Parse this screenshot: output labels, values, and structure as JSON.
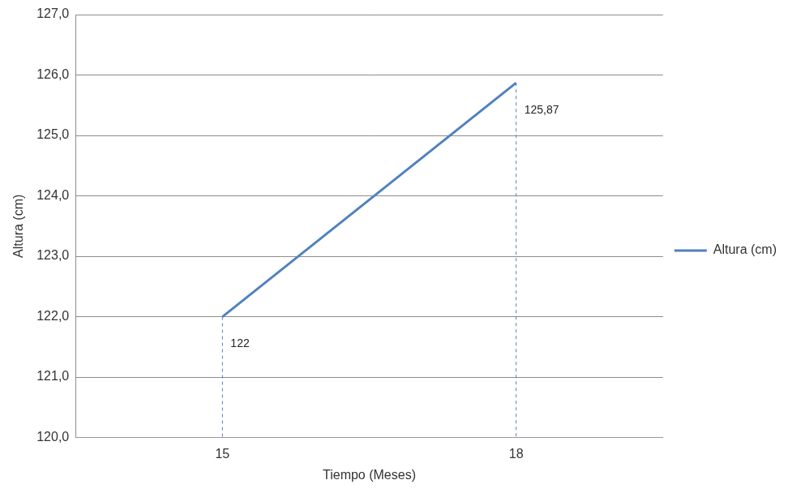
{
  "chart_data": {
    "type": "line",
    "x_label": "Tiempo (Meses)",
    "y_label": "Altura (cm)",
    "categories": [
      "15",
      "18"
    ],
    "series": [
      {
        "name": "Altura (cm)",
        "color": "#4f81bd",
        "values": [
          122,
          125.87
        ],
        "marker": "none",
        "line_style": "solid"
      }
    ],
    "data_labels": true,
    "value_labels": [
      "122",
      "125,87"
    ],
    "ylim": [
      120,
      127
    ],
    "yticks": [
      {
        "value": 120,
        "label": "120,0"
      },
      {
        "value": 121,
        "label": "121,0"
      },
      {
        "value": 122,
        "label": "122,0"
      },
      {
        "value": 123,
        "label": "123,0"
      },
      {
        "value": 124,
        "label": "124,0"
      },
      {
        "value": 125,
        "label": "125,0"
      },
      {
        "value": 126,
        "label": "126,0"
      },
      {
        "value": 127,
        "label": "127,0"
      }
    ],
    "grid": true,
    "legend": "right"
  }
}
